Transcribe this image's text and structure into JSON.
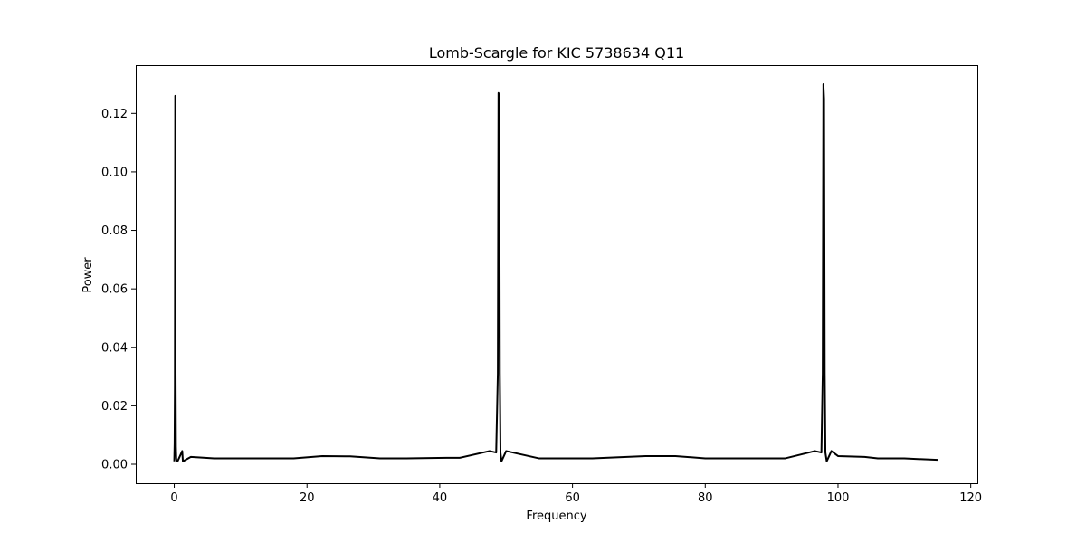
{
  "chart_data": {
    "type": "line",
    "title": "Lomb-Scargle for KIC 5738634 Q11",
    "xlabel": "Frequency",
    "ylabel": "Power",
    "xlim": [
      -5.8,
      121
    ],
    "ylim": [
      -0.0065,
      0.1365
    ],
    "xticks": [
      0,
      20,
      40,
      60,
      80,
      100,
      120
    ],
    "xtick_labels": [
      "0",
      "20",
      "40",
      "60",
      "80",
      "100",
      "120"
    ],
    "yticks": [
      0.0,
      0.02,
      0.04,
      0.06,
      0.08,
      0.1,
      0.12
    ],
    "ytick_labels": [
      "0.00",
      "0.02",
      "0.04",
      "0.06",
      "0.08",
      "0.10",
      "0.12"
    ],
    "grid": false,
    "line_color": "#000000",
    "series": [
      {
        "x": [
          0.0,
          0.05,
          0.1,
          0.15,
          0.2,
          0.25,
          0.3,
          0.35,
          0.5,
          1.2,
          1.3,
          2.5,
          6.0,
          7.5,
          12.0,
          18.0,
          22.3,
          26.5,
          31.0,
          35.0,
          41.0,
          43.0,
          47.5,
          48.5,
          48.75,
          48.85,
          48.95,
          49.05,
          49.15,
          49.3,
          50.0,
          55.0,
          63.0,
          71.0,
          75.5,
          80.0,
          86.0,
          92.0,
          96.5,
          97.5,
          97.7,
          97.8,
          97.9,
          98.0,
          98.1,
          98.3,
          99.0,
          100.0,
          104.0,
          106.0,
          110.0,
          115.0
        ],
        "y": [
          0.001,
          0.007,
          0.027,
          0.126,
          0.031,
          0.006,
          0.002,
          0.001,
          0.001,
          0.0045,
          0.001,
          0.0025,
          0.002,
          0.002,
          0.002,
          0.002,
          0.0028,
          0.0027,
          0.002,
          0.002,
          0.0022,
          0.0022,
          0.0045,
          0.004,
          0.031,
          0.127,
          0.126,
          0.031,
          0.004,
          0.001,
          0.0045,
          0.002,
          0.002,
          0.0028,
          0.0028,
          0.002,
          0.002,
          0.002,
          0.0045,
          0.004,
          0.031,
          0.13,
          0.125,
          0.031,
          0.004,
          0.001,
          0.0045,
          0.0028,
          0.0025,
          0.002,
          0.002,
          0.0015
        ]
      }
    ]
  }
}
